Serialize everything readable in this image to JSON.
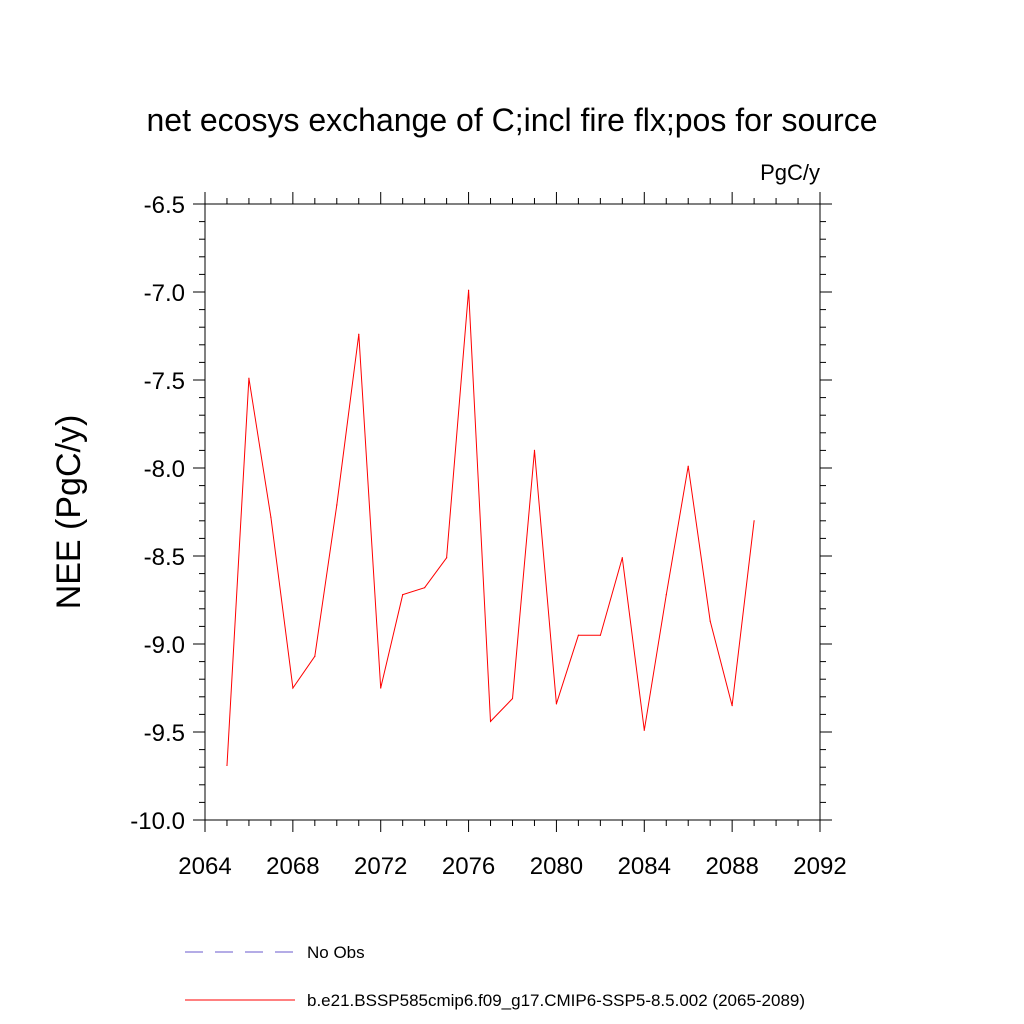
{
  "chart_data": {
    "type": "line",
    "title": "net ecosys exchange of C;incl fire flx;pos for source",
    "units_label": "PgC/y",
    "ylabel": "NEE  (PgC/y)",
    "xlabel": "",
    "xlim": [
      2064,
      2092
    ],
    "ylim": [
      -10.0,
      -6.5
    ],
    "x_ticks": [
      2064,
      2068,
      2072,
      2076,
      2080,
      2084,
      2088,
      2092
    ],
    "x_tick_labels": [
      "2064",
      "2068",
      "2072",
      "2076",
      "2080",
      "2084",
      "2088",
      "2092"
    ],
    "y_ticks": [
      -10.0,
      -9.5,
      -9.0,
      -8.5,
      -8.0,
      -7.5,
      -7.0,
      -6.5
    ],
    "y_tick_labels": [
      "-10.0",
      "-9.5",
      "-9.0",
      "-8.5",
      "-8.0",
      "-7.5",
      "-7.0",
      "-6.5"
    ],
    "grid": false,
    "legend_position": "bottom",
    "series": [
      {
        "name": "b.e21.BSSP585cmip6.f09_g17.CMIP6-SSP5-8.5.002 (2065-2089)",
        "color": "#ff0000",
        "style": "solid",
        "x": [
          2065,
          2066,
          2067,
          2068,
          2069,
          2070,
          2071,
          2072,
          2073,
          2074,
          2075,
          2076,
          2077,
          2078,
          2079,
          2080,
          2081,
          2082,
          2083,
          2084,
          2085,
          2086,
          2087,
          2088,
          2089
        ],
        "y": [
          -9.69,
          -7.49,
          -8.28,
          -9.25,
          -9.07,
          -8.21,
          -7.24,
          -9.25,
          -8.72,
          -8.68,
          -8.51,
          -6.99,
          -9.44,
          -9.31,
          -7.9,
          -9.34,
          -8.95,
          -8.95,
          -8.51,
          -9.49,
          -8.72,
          -7.99,
          -8.87,
          -9.35,
          -8.3
        ]
      }
    ],
    "legend": [
      {
        "label": "No Obs",
        "color": "#6a5acd",
        "style": "dashed"
      },
      {
        "label": "b.e21.BSSP585cmip6.f09_g17.CMIP6-SSP5-8.5.002 (2065-2089)",
        "color": "#ff0000",
        "style": "solid"
      }
    ]
  }
}
